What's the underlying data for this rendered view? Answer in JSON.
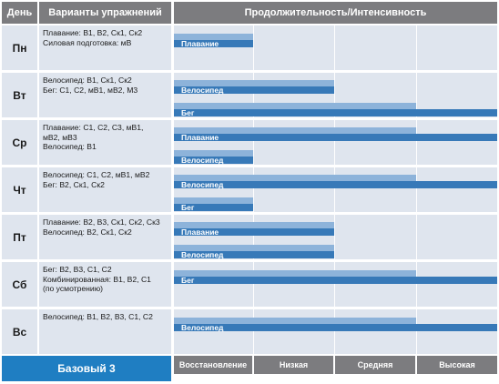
{
  "header": {
    "day": "День",
    "exercises": "Варианты упражнений",
    "duration": "Продолжительность/Интенсивность"
  },
  "rows": [
    {
      "day": "Пн",
      "lines": [
        "Плавание: В1, В2, Ск1, Ск2",
        "Силовая подготовка: мВ"
      ],
      "bars": [
        {
          "label": "Плавание",
          "light_end": 1,
          "dark_end": 1
        }
      ]
    },
    {
      "day": "Вт",
      "lines": [
        "Велосипед: В1, Ск1, Ск2",
        "Бег: С1, С2, мВ1, мВ2, М3"
      ],
      "bars": [
        {
          "label": "Велосипед",
          "light_end": 2,
          "dark_end": 2
        },
        {
          "label": "Бег",
          "light_end": 3,
          "dark_end": 4
        }
      ]
    },
    {
      "day": "Ср",
      "lines": [
        "Плавание: С1, С2, С3, мВ1,",
        "мВ2, мВ3",
        "Велосипед: В1"
      ],
      "bars": [
        {
          "label": "Плавание",
          "light_end": 3,
          "dark_end": 4
        },
        {
          "label": "Велосипед",
          "light_end": 1,
          "dark_end": 1
        }
      ]
    },
    {
      "day": "Чт",
      "lines": [
        "Велосипед: С1, С2, мВ1, мВ2",
        "Бег: В2, Ск1, Ск2"
      ],
      "bars": [
        {
          "label": "Велосипед",
          "light_end": 3,
          "dark_end": 4
        },
        {
          "label": "Бег",
          "light_end": 1,
          "dark_end": 1
        }
      ]
    },
    {
      "day": "Пт",
      "lines": [
        "Плавание: В2, В3, Ск1, Ск2, Ск3",
        "Велосипед: В2, Ск1, Ск2"
      ],
      "bars": [
        {
          "label": "Плавание",
          "light_end": 2,
          "dark_end": 2
        },
        {
          "label": "Велосипед",
          "light_end": 2,
          "dark_end": 2
        }
      ]
    },
    {
      "day": "Сб",
      "lines": [
        "Бег: В2, В3, С1, С2",
        "Комбинированная: В1, В2, С1",
        "(по усмотрению)"
      ],
      "bars": [
        {
          "label": "Бег",
          "light_end": 3,
          "dark_end": 4
        }
      ]
    },
    {
      "day": "Вс",
      "lines": [
        "Велосипед: В1, В2, В3, С1, С2"
      ],
      "bars": [
        {
          "label": "Велосипед",
          "light_end": 3,
          "dark_end": 4
        }
      ]
    }
  ],
  "footer": {
    "title": "Базовый 3",
    "intensity_labels": [
      "Восстановление",
      "Низкая",
      "Средняя",
      "Высокая"
    ]
  },
  "colors": {
    "bar_light": "#8db3da",
    "bar_dark": "#3779b8",
    "row_bg": "#dfe5ee",
    "header_bg": "#7c7c7f",
    "accent": "#1f7ec2"
  }
}
